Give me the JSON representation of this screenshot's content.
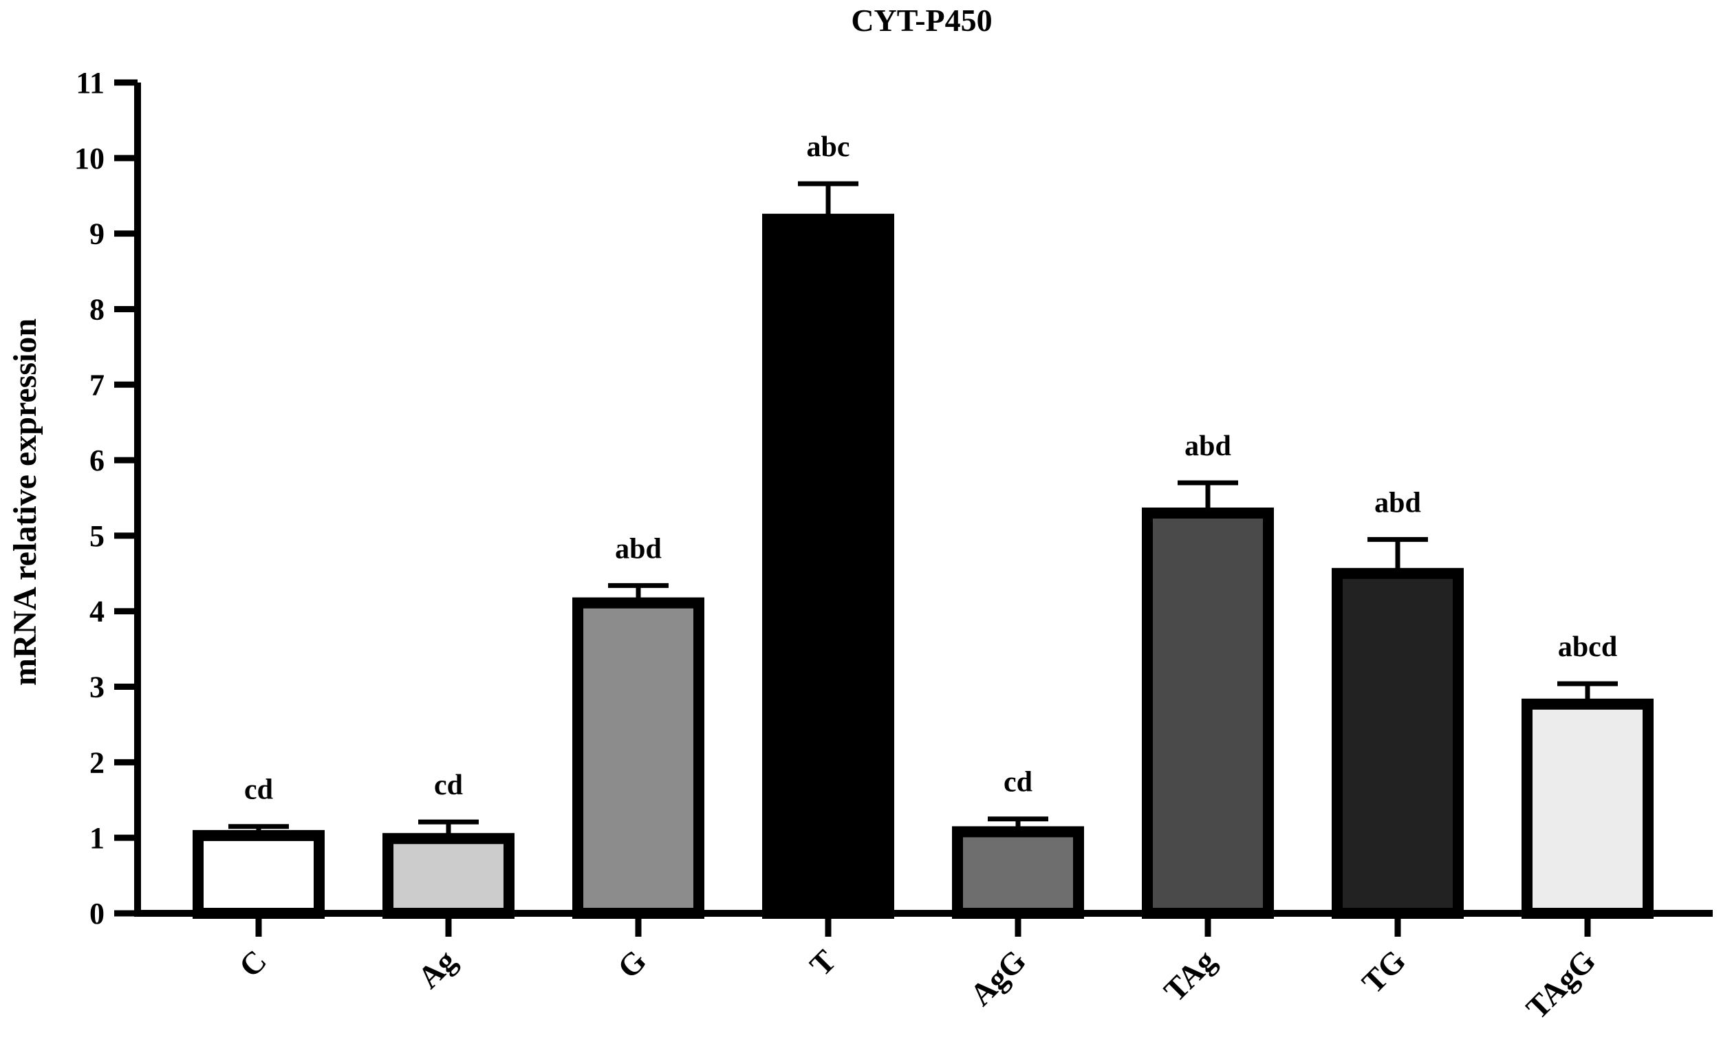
{
  "chart_data": {
    "type": "bar",
    "title": "CYT-P450",
    "xlabel": "",
    "ylabel": "mRNA relative expression",
    "ylim": [
      0,
      11
    ],
    "yticks": [
      0,
      1,
      2,
      3,
      4,
      5,
      6,
      7,
      8,
      9,
      10,
      11
    ],
    "grid": false,
    "categories": [
      "C",
      "Ag",
      "G",
      "T",
      "AgG",
      "TAg",
      "TG",
      "TAgG"
    ],
    "values": [
      1.03,
      0.99,
      4.11,
      9.19,
      1.08,
      5.3,
      4.5,
      2.77
    ],
    "errors": [
      0.12,
      0.22,
      0.23,
      0.47,
      0.17,
      0.4,
      0.45,
      0.27
    ],
    "significance_labels": [
      "cd",
      "cd",
      "abd",
      "abc",
      "cd",
      "abd",
      "abd",
      "abcd"
    ],
    "bar_colors": [
      "#ffffff",
      "#cccccc",
      "#8c8c8c",
      "#000000",
      "#6e6e6e",
      "#4a4a4a",
      "#222222",
      "#ececec"
    ],
    "edge_color": "#000000"
  }
}
